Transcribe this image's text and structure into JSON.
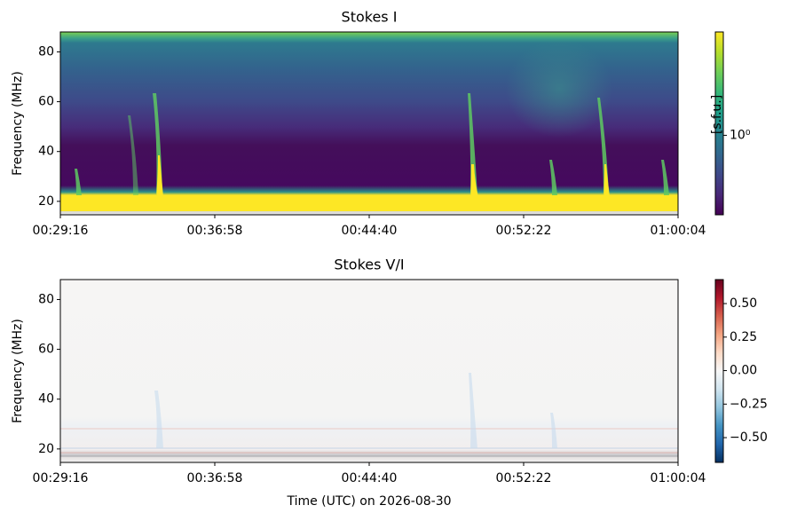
{
  "chart_data": [
    {
      "type": "heatmap",
      "title": "Stokes I",
      "ylabel": "Frequency (MHz)",
      "xlim": [
        1756,
        3604
      ],
      "xticks": [
        {
          "value": 1756,
          "label": "00:29:16"
        },
        {
          "value": 2218,
          "label": "00:36:58"
        },
        {
          "value": 2680,
          "label": "00:44:40"
        },
        {
          "value": 3142,
          "label": "00:52:22"
        },
        {
          "value": 3604,
          "label": "01:00:04"
        }
      ],
      "ylim": [
        14.6,
        88
      ],
      "yticks": [
        20,
        40,
        60,
        80
      ],
      "colorbar": {
        "label": "[s.f.u.]",
        "colormap": "viridis",
        "scale": "log",
        "lim": [
          0.32,
          4.4
        ],
        "ticks": [
          {
            "value": 1,
            "label": "10⁰"
          }
        ]
      }
    },
    {
      "type": "heatmap",
      "title": "Stokes V/I",
      "ylabel": "Frequency (MHz)",
      "xlabel": "Time (UTC) on 2026-08-30",
      "xlim": [
        1756,
        3604
      ],
      "xticks": [
        {
          "value": 1756,
          "label": "00:29:16"
        },
        {
          "value": 2218,
          "label": "00:36:58"
        },
        {
          "value": 2680,
          "label": "00:44:40"
        },
        {
          "value": 3142,
          "label": "00:52:22"
        },
        {
          "value": 3604,
          "label": "01:00:04"
        }
      ],
      "ylim": [
        14.6,
        88
      ],
      "yticks": [
        20,
        40,
        60,
        80
      ],
      "colorbar": {
        "colormap": "RdBu_r",
        "scale": "linear",
        "lim": [
          -0.685,
          0.679
        ],
        "ticks": [
          {
            "value": -0.5,
            "label": "−0.50"
          },
          {
            "value": -0.25,
            "label": "−0.25"
          },
          {
            "value": 0,
            "label": "0.00"
          },
          {
            "value": 0.25,
            "label": "0.25"
          },
          {
            "value": 0.5,
            "label": "0.50"
          }
        ]
      }
    }
  ]
}
